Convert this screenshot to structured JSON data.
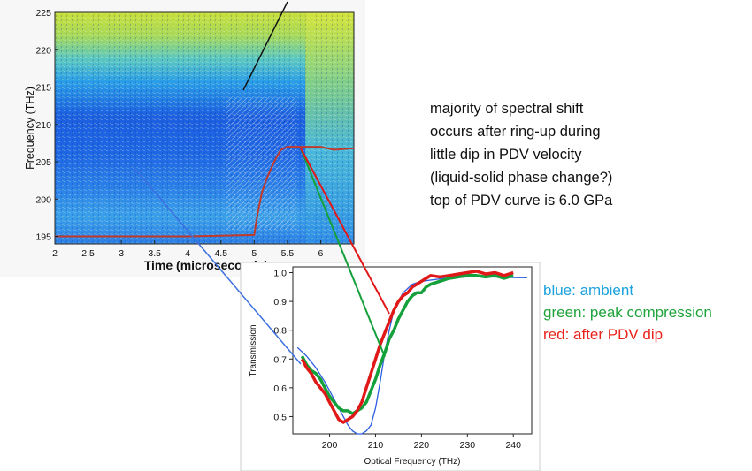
{
  "spectrogram": {
    "ylabel": "Frequency (THz)",
    "xlabel": "Time (microseconds)",
    "y_ticks": [
      "195",
      "200",
      "205",
      "210",
      "215",
      "220",
      "225"
    ],
    "x_ticks": [
      "2",
      "2.5",
      "3",
      "3.5",
      "4",
      "4.5",
      "5",
      "5.5",
      "6"
    ]
  },
  "transmission_chart": {
    "ylabel": "Transmission",
    "xlabel": "Optical Frequency (THz)",
    "y_ticks": [
      "0.5",
      "0.6",
      "0.7",
      "0.8",
      "0.9",
      "1.0"
    ],
    "x_ticks": [
      "200",
      "210",
      "220",
      "230",
      "240"
    ]
  },
  "notes": [
    "majority of spectral shift",
    "occurs after ring-up during",
    "little dip in PDV velocity",
    "(liquid-solid phase change?)",
    "top of PDV curve is 6.0 GPa"
  ],
  "legend": [
    {
      "text": "blue: ambient",
      "color": "#1ba1dd"
    },
    {
      "text": "green: peak compression",
      "color": "#1fa33a"
    },
    {
      "text": "red: after PDV dip",
      "color": "#e8241c"
    }
  ],
  "colors": {
    "blue": "#2f5fe0",
    "green": "#14a03a",
    "red": "#e01818",
    "pdv_trace": "#c0392b"
  },
  "chart_data": [
    {
      "type": "heatmap",
      "xlabel": "Time (microseconds)",
      "ylabel": "Frequency (THz)",
      "xlim": [
        2,
        6.5
      ],
      "ylim": [
        194,
        225
      ],
      "series": [
        {
          "values": [
            [
              2,
              195
            ],
            [
              3,
              195
            ],
            [
              4,
              195
            ],
            [
              5,
              195.2
            ],
            [
              5.05,
              198
            ],
            [
              5.12,
              201
            ],
            [
              5.2,
              203
            ],
            [
              5.3,
              205
            ],
            [
              5.4,
              206.6
            ],
            [
              5.5,
              207
            ],
            [
              5.7,
              207
            ],
            [
              6,
              207
            ],
            [
              6.2,
              206.6
            ],
            [
              6.5,
              206.8
            ]
          ]
        }
      ]
    },
    {
      "type": "line",
      "xlabel": "Optical Frequency (THz)",
      "ylabel": "Transmission",
      "xlim": [
        192,
        244
      ],
      "ylim": [
        0.44,
        1.02
      ],
      "series": [
        {
          "values": [
            [
              193,
              0.74
            ],
            [
              195,
              0.71
            ],
            [
              197,
              0.67
            ],
            [
              199,
              0.62
            ],
            [
              201,
              0.56
            ],
            [
              203,
              0.5
            ],
            [
              204,
              0.47
            ],
            [
              205,
              0.45
            ],
            [
              206,
              0.44
            ],
            [
              207,
              0.44
            ],
            [
              208,
              0.45
            ],
            [
              209,
              0.47
            ],
            [
              210,
              0.53
            ],
            [
              211,
              0.62
            ],
            [
              212,
              0.72
            ],
            [
              213,
              0.8
            ],
            [
              214,
              0.87
            ],
            [
              216,
              0.93
            ],
            [
              218,
              0.96
            ],
            [
              220,
              0.97
            ],
            [
              225,
              0.98
            ],
            [
              230,
              0.985
            ],
            [
              235,
              0.985
            ],
            [
              240,
              0.983
            ],
            [
              243,
              0.982
            ]
          ]
        },
        {
          "values": [
            [
              194,
              0.71
            ],
            [
              195,
              0.68
            ],
            [
              196,
              0.66
            ],
            [
              197,
              0.65
            ],
            [
              198,
              0.63
            ],
            [
              199,
              0.6
            ],
            [
              200,
              0.57
            ],
            [
              201,
              0.55
            ],
            [
              202,
              0.53
            ],
            [
              203,
              0.52
            ],
            [
              204,
              0.52
            ],
            [
              205,
              0.51
            ],
            [
              206,
              0.52
            ],
            [
              207,
              0.53
            ],
            [
              208,
              0.55
            ],
            [
              209,
              0.59
            ],
            [
              210,
              0.63
            ],
            [
              211,
              0.68
            ],
            [
              212,
              0.72
            ],
            [
              213,
              0.77
            ],
            [
              214,
              0.8
            ],
            [
              215,
              0.84
            ],
            [
              216,
              0.87
            ],
            [
              217,
              0.9
            ],
            [
              218,
              0.92
            ],
            [
              219,
              0.93
            ],
            [
              220,
              0.93
            ],
            [
              221,
              0.95
            ],
            [
              222,
              0.96
            ],
            [
              224,
              0.97
            ],
            [
              226,
              0.98
            ],
            [
              228,
              0.985
            ],
            [
              230,
              0.99
            ],
            [
              232,
              0.99
            ],
            [
              234,
              0.985
            ],
            [
              236,
              0.99
            ],
            [
              238,
              0.98
            ],
            [
              240,
              0.99
            ]
          ]
        },
        {
          "values": [
            [
              194,
              0.7
            ],
            [
              195,
              0.67
            ],
            [
              196,
              0.65
            ],
            [
              197,
              0.62
            ],
            [
              198,
              0.6
            ],
            [
              199,
              0.58
            ],
            [
              200,
              0.55
            ],
            [
              201,
              0.52
            ],
            [
              202,
              0.49
            ],
            [
              203,
              0.48
            ],
            [
              204,
              0.49
            ],
            [
              205,
              0.5
            ],
            [
              206,
              0.52
            ],
            [
              207,
              0.55
            ],
            [
              208,
              0.6
            ],
            [
              209,
              0.65
            ],
            [
              210,
              0.7
            ],
            [
              211,
              0.75
            ],
            [
              212,
              0.79
            ],
            [
              213,
              0.83
            ],
            [
              214,
              0.87
            ],
            [
              215,
              0.9
            ],
            [
              216,
              0.92
            ],
            [
              217,
              0.93
            ],
            [
              218,
              0.95
            ],
            [
              219,
              0.96
            ],
            [
              220,
              0.97
            ],
            [
              221,
              0.98
            ],
            [
              222,
              0.99
            ],
            [
              224,
              0.985
            ],
            [
              226,
              0.99
            ],
            [
              228,
              0.995
            ],
            [
              230,
              1.0
            ],
            [
              232,
              1.005
            ],
            [
              234,
              0.995
            ],
            [
              236,
              1.0
            ],
            [
              238,
              0.99
            ],
            [
              240,
              1.0
            ]
          ]
        }
      ]
    }
  ]
}
